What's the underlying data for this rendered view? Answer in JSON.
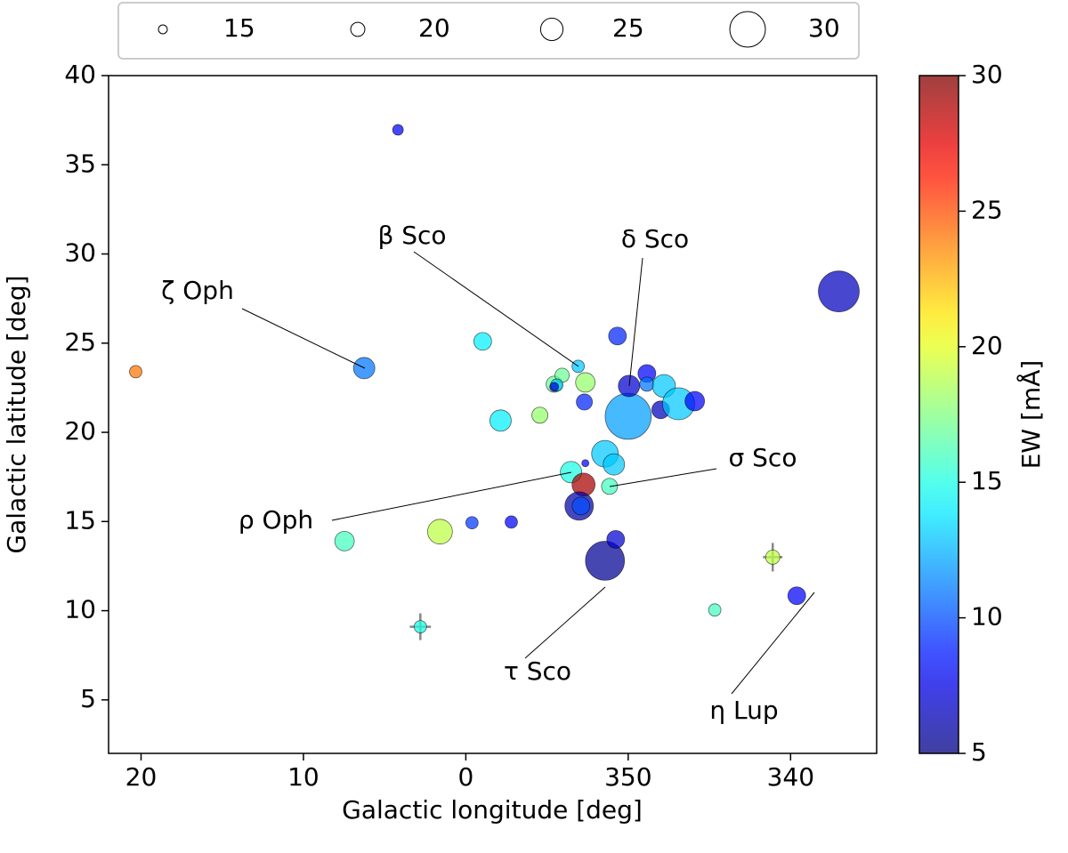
{
  "chart_data": {
    "type": "scatter",
    "x_label": "Galactic longitude [deg]",
    "y_label": "Galactic latitude [deg]",
    "xlim": [
      22,
      -25.3
    ],
    "ylim": [
      2,
      40
    ],
    "xticks": [
      20,
      10,
      0,
      {
        "value": -10,
        "label": "350"
      },
      {
        "value": -20,
        "label": "340"
      }
    ],
    "yticks": [
      5,
      10,
      15,
      20,
      25,
      30,
      35,
      40
    ],
    "x": [
      4.18,
      20.33,
      6.26,
      -1.04,
      -2.14,
      -4.56,
      -5.44,
      -5.93,
      -5.6,
      -5.44,
      -6.92,
      -7.36,
      -7.3,
      -9.34,
      -10,
      -10.05,
      -11.15,
      -11.15,
      -12.2,
      -12.0,
      -13.1,
      -14.1,
      -22.97,
      -7.36,
      -8.57,
      -9.12,
      -6.48,
      -7.25,
      -8.85,
      -6.98,
      -7.09,
      -2.8,
      -0.38,
      1.59,
      7.47,
      -8.57,
      -9.23,
      -18.9,
      -20.38,
      -15.33,
      2.8
    ],
    "y": [
      36.96,
      23.4,
      23.6,
      25.1,
      20.66,
      20.96,
      22.7,
      23.2,
      22.65,
      22.55,
      23.7,
      22.8,
      21.7,
      25.4,
      20.9,
      22.6,
      23.3,
      22.7,
      22.6,
      21.26,
      21.6,
      21.75,
      27.9,
      18.27,
      18.8,
      18.2,
      17.77,
      17.07,
      16.97,
      15.87,
      15.87,
      14.97,
      14.93,
      14.43,
      13.9,
      12.8,
      14.0,
      13.0,
      10.84,
      10.04,
      9.1
    ],
    "size": [
      17.0,
      18.6,
      24.5,
      22.5,
      24.5,
      21.4,
      21.4,
      20.1,
      18.6,
      15,
      18.6,
      23.5,
      21.4,
      22.5,
      32.8,
      24.5,
      22.5,
      20.1,
      25.3,
      22.5,
      28.9,
      23.5,
      31.5,
      12.6,
      26.9,
      24.5,
      24.5,
      25.3,
      21.4,
      27.6,
      22.5,
      18.6,
      18.6,
      26.1,
      23.5,
      31.0,
      22.5,
      20.1,
      22.5,
      18.6,
      18.6
    ],
    "ew": [
      8,
      24,
      11,
      14,
      14,
      18,
      17,
      17,
      13,
      7,
      13,
      18,
      9,
      9,
      12,
      7,
      8,
      11,
      13,
      6.5,
      13,
      8,
      6.5,
      8,
      13,
      13,
      15,
      29,
      16,
      6,
      10,
      8,
      9.5,
      19,
      16,
      5.5,
      7,
      19,
      8,
      16,
      15
    ],
    "xerr": [
      null,
      null,
      null,
      null,
      null,
      null,
      null,
      null,
      null,
      null,
      null,
      null,
      null,
      null,
      null,
      null,
      null,
      null,
      null,
      null,
      null,
      null,
      null,
      null,
      null,
      null,
      null,
      null,
      null,
      null,
      null,
      null,
      null,
      null,
      null,
      null,
      null,
      0.6,
      null,
      null,
      0.65
    ],
    "yerr": [
      null,
      null,
      null,
      null,
      null,
      null,
      null,
      null,
      null,
      null,
      null,
      null,
      null,
      null,
      null,
      null,
      null,
      null,
      null,
      null,
      null,
      null,
      null,
      null,
      null,
      null,
      null,
      null,
      null,
      null,
      null,
      null,
      null,
      null,
      null,
      null,
      null,
      0.8,
      null,
      null,
      0.75
    ],
    "size_legend": [
      15,
      20,
      25,
      30
    ],
    "colorbar": {
      "label": "EW [mÅ]",
      "lim": [
        5,
        30
      ],
      "ticks": [
        5,
        10,
        15,
        20,
        25,
        30
      ],
      "colormap": "jet"
    },
    "annotations": [
      "ζ Oph",
      "β Sco",
      "δ Sco",
      "σ Sco",
      "ρ Oph",
      "τ Sco",
      "η Lup"
    ]
  }
}
